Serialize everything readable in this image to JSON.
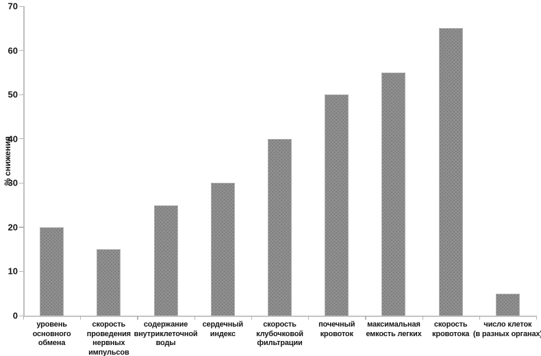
{
  "chart_data": {
    "type": "bar",
    "title": "",
    "xlabel": "",
    "ylabel": "% снижения",
    "ylim": [
      0,
      70
    ],
    "yticks": [
      0,
      10,
      20,
      30,
      40,
      50,
      60,
      70
    ],
    "grid": false,
    "legend_position": "none",
    "categories": [
      [
        "уровень",
        "основного",
        "обмена"
      ],
      [
        "скорость",
        "проведения",
        "нервных",
        "импульсов"
      ],
      [
        "содержание",
        "внутриклеточной",
        "воды"
      ],
      [
        "сердечный",
        "индекс"
      ],
      [
        "скорость",
        "клубочковой",
        "фильтрации"
      ],
      [
        "почечный",
        "кровоток"
      ],
      [
        "максимальная",
        "емкость легких"
      ],
      [
        "скорость",
        "кровотока"
      ],
      [
        "число клеток",
        "(в разных органах)"
      ]
    ],
    "values": [
      20,
      15,
      25,
      30,
      40,
      50,
      55,
      65,
      5
    ],
    "colors": {
      "bar_fill": "#8f8f8f",
      "bar_dots": "#737373",
      "bar_edge": "#b0b0b0",
      "axis": "#bdbdbd",
      "text": "#141414",
      "background": "#ffffff"
    }
  }
}
